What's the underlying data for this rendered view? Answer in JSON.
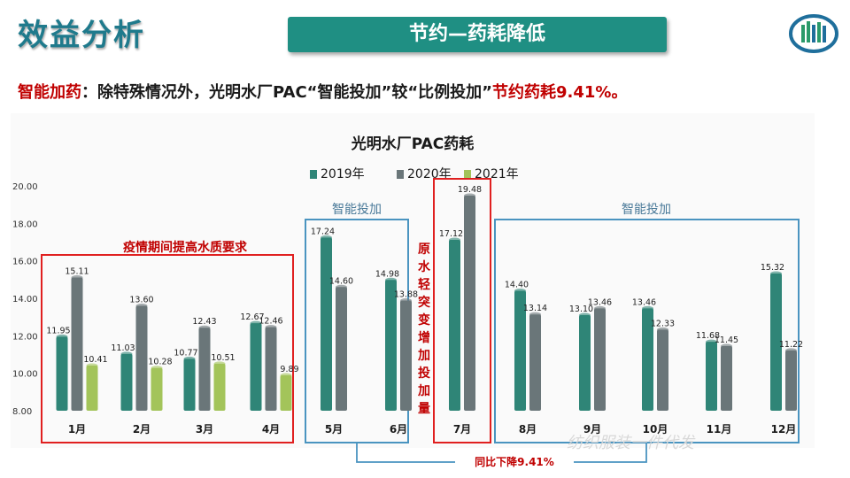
{
  "header": {
    "title": "效益分析",
    "banner": "节约—药耗降低",
    "summary_lead": "智能加药",
    "summary_body": "：除特殊情况外，光明水厂PAC“智能投加”较“比例投加”",
    "summary_highlight": "节约药耗9.41%。"
  },
  "colors": {
    "title": "#1f7a8c",
    "banner": "#1f8f83",
    "series_2019": "#2f8577",
    "series_2020": "#6a7679",
    "series_2021": "#a3c45a",
    "red_box": "#e02020",
    "blue_box": "#4a94c0"
  },
  "chart_data": {
    "type": "bar",
    "title": "光明水厂PAC药耗",
    "categories": [
      "1月",
      "2月",
      "3月",
      "4月",
      "5月",
      "6月",
      "7月",
      "8月",
      "9月",
      "10月",
      "11月",
      "12月"
    ],
    "series": [
      {
        "name": "2019年",
        "values": [
          11.95,
          11.03,
          10.77,
          12.67,
          17.24,
          14.98,
          17.12,
          14.4,
          13.1,
          13.46,
          11.68,
          15.32
        ]
      },
      {
        "name": "2020年",
        "values": [
          15.11,
          13.6,
          12.43,
          12.46,
          14.6,
          13.88,
          19.48,
          13.14,
          13.46,
          12.33,
          11.45,
          11.22
        ]
      },
      {
        "name": "2021年",
        "values": [
          10.41,
          10.28,
          10.51,
          9.89,
          null,
          null,
          null,
          null,
          null,
          null,
          null,
          null
        ]
      }
    ],
    "value_labels": [
      [
        "11.95",
        "11.03",
        "10.77",
        "12.67",
        "17.24",
        "14.98",
        "17.12",
        "14.40",
        "13.10",
        "13.46",
        "11.68",
        "15.32"
      ],
      [
        "15.11",
        "13.60",
        "12.43",
        "12.46",
        "14.60",
        "13.88",
        "19.48",
        "13.14",
        "13.46",
        "12.33",
        "11.45",
        "11.22"
      ],
      [
        "10.41",
        "10.28",
        "10.51",
        "9.89",
        "",
        "",
        "",
        "",
        "",
        "",
        "",
        ""
      ]
    ],
    "yticks": [
      "8.00",
      "10.00",
      "12.00",
      "14.00",
      "16.00",
      "18.00",
      "20.00"
    ],
    "ylim": [
      8,
      20
    ],
    "grid": false,
    "legend_position": "top",
    "annotations": {
      "epidemic": "疫情期间提高水质要求",
      "smart_left": "智能投加",
      "smart_right": "智能投加",
      "raw_water": "原水轻突变增加投加量",
      "yoy": "同比下降9.41%"
    }
  },
  "watermark": "纺织服装一件代发"
}
